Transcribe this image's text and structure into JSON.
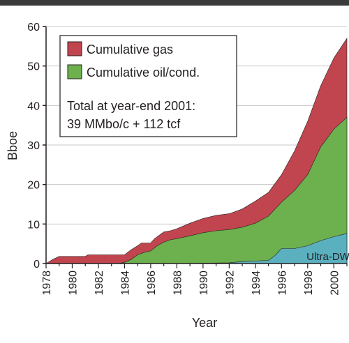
{
  "chart_data": {
    "type": "area",
    "title": "",
    "xlabel": "Year",
    "ylabel": "Bboe",
    "xlim": [
      1978,
      2001
    ],
    "ylim": [
      0,
      60
    ],
    "xticks": [
      1978,
      1980,
      1982,
      1984,
      1986,
      1988,
      1990,
      1992,
      1994,
      1996,
      1998,
      2000
    ],
    "xtick_labels": [
      "1978",
      "1980",
      "1982",
      "1984",
      "1986",
      "1988",
      "1990",
      "1992",
      "1994",
      "1996",
      "1998",
      "2000"
    ],
    "yticks": [
      0,
      10,
      20,
      30,
      40,
      50,
      60
    ],
    "ytick_labels": [
      "0",
      "10",
      "20",
      "30",
      "40",
      "50",
      "60"
    ],
    "grid": "horizontal",
    "stacking": "overlaid",
    "legend": {
      "placement": "top-left",
      "entries": [
        {
          "label": "Cumulative gas",
          "color": "#c0454f"
        },
        {
          "label": "Cumulative oil/cond.",
          "color": "#6db04e"
        }
      ],
      "note_lines": [
        "Total at year-end 2001:",
        "39 MMbo/c + 112 tcf"
      ]
    },
    "series": [
      {
        "name": "Cumulative gas",
        "color": "#c0454f",
        "x": [
          1978,
          1978.5,
          1979,
          1981,
          1981.2,
          1984,
          1984.5,
          1985,
          1985.3,
          1986,
          1986.3,
          1987,
          1987.5,
          1988,
          1989,
          1990,
          1991,
          1992,
          1993,
          1994,
          1995,
          1996,
          1997,
          1998,
          1999,
          2000,
          2001
        ],
        "values": [
          0,
          1,
          1.8,
          1.8,
          2.2,
          2.2,
          3.5,
          4.5,
          5.2,
          5.2,
          6.3,
          8.0,
          8.3,
          8.8,
          10.2,
          11.4,
          12.2,
          12.6,
          13.8,
          15.8,
          18.0,
          22.5,
          28.5,
          36.0,
          45.0,
          52.0,
          57.0
        ]
      },
      {
        "name": "Cumulative oil/cond.",
        "color": "#6db04e",
        "x": [
          1978,
          1983.5,
          1984,
          1984.5,
          1985,
          1985.5,
          1986,
          1986.5,
          1987,
          1987.5,
          1988,
          1989,
          1990,
          1991,
          1992,
          1993,
          1994,
          1995,
          1996,
          1997,
          1998,
          1999,
          2000,
          2001
        ],
        "values": [
          0,
          0,
          0.3,
          1.0,
          2.2,
          2.8,
          3.2,
          4.5,
          5.4,
          6.0,
          6.3,
          7.0,
          7.8,
          8.3,
          8.6,
          9.2,
          10.2,
          12.0,
          15.5,
          18.5,
          22.5,
          29.5,
          34.0,
          37.0
        ]
      },
      {
        "name": "Ultra-DW",
        "color": "#5bb0bf",
        "x": [
          1978,
          1988,
          1992,
          1993,
          1995,
          1995.5,
          1996,
          1997,
          1998,
          1999,
          2000,
          2001
        ],
        "values": [
          0,
          0,
          0.2,
          0.5,
          0.8,
          2.0,
          3.8,
          3.8,
          4.5,
          5.8,
          6.8,
          7.6
        ]
      }
    ],
    "annotations": [
      "Ultra-DW"
    ]
  }
}
